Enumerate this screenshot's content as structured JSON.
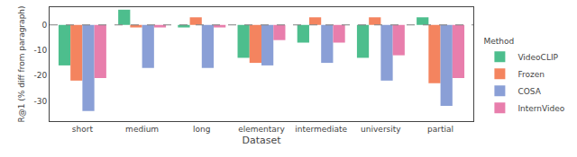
{
  "chart_data": {
    "type": "bar",
    "categories": [
      "short",
      "medium",
      "long",
      "elementary",
      "intermediate",
      "university",
      "partial"
    ],
    "series": [
      {
        "name": "VideoCLIP",
        "color": "#4dbe8d",
        "values": [
          -16,
          6,
          -1,
          -13,
          -7,
          -13,
          3
        ]
      },
      {
        "name": "Frozen",
        "color": "#f4845f",
        "values": [
          -22,
          -1,
          3,
          -15,
          3,
          3,
          -23
        ]
      },
      {
        "name": "COSA",
        "color": "#8a9fd6",
        "values": [
          -34,
          -17,
          -17,
          -16,
          -15,
          -22,
          -32
        ]
      },
      {
        "name": "InternVideo",
        "color": "#e87eac",
        "values": [
          -21,
          -1,
          -1,
          -6,
          -7,
          -12,
          -21
        ]
      }
    ],
    "xlabel": "Dataset",
    "ylabel": "R@1 (% diff from paragraph)",
    "ylim": [
      -38,
      7
    ],
    "yticks": [
      0,
      -10,
      -20,
      -30
    ],
    "legend_title": "Method",
    "legend": "lower right",
    "grid": false,
    "reference_lines": [
      {
        "y": 0,
        "line_style": "dashed"
      }
    ]
  }
}
